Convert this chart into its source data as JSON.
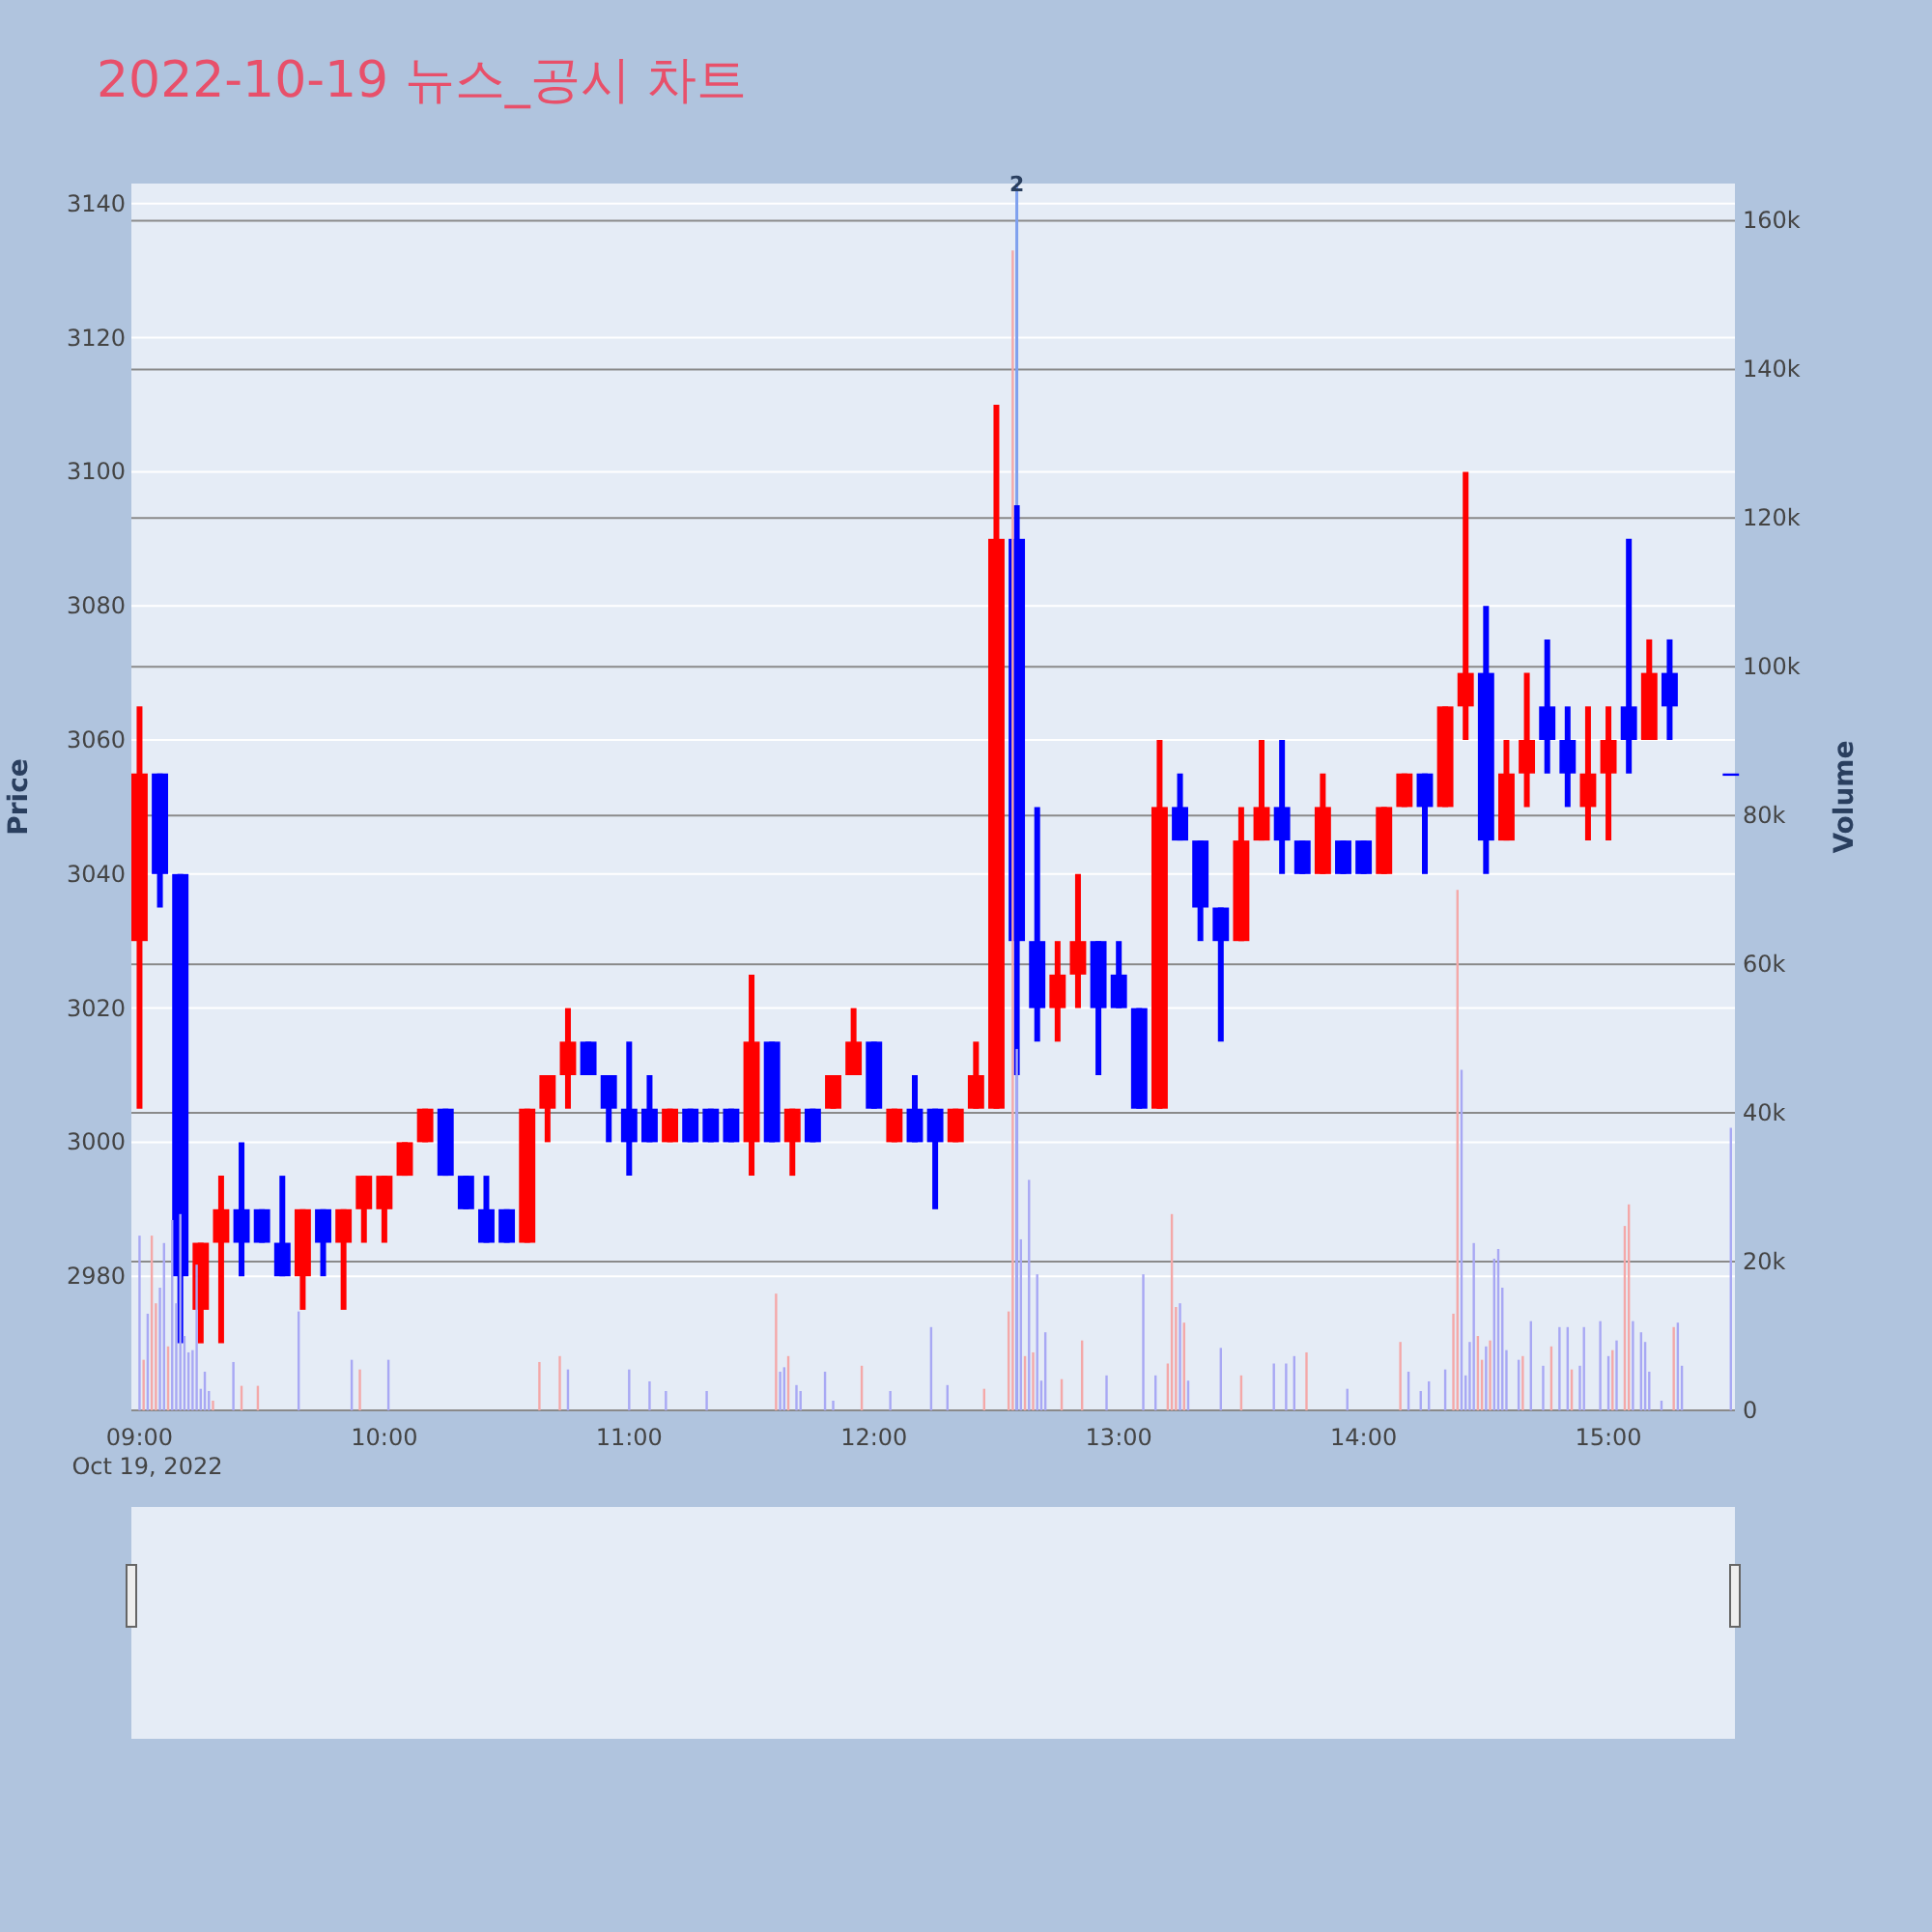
{
  "chart_data": {
    "type": "candlestick",
    "title": "2022-10-19 뉴스_공시 차트",
    "ylabel": "Price",
    "y2label": "Volume",
    "grid": "y",
    "x": [
      "2022-10-19T09:00",
      "2022-10-19T09:05",
      "2022-10-19T09:10",
      "2022-10-19T09:15",
      "2022-10-19T09:20",
      "2022-10-19T09:25",
      "2022-10-19T09:30",
      "2022-10-19T09:35",
      "2022-10-19T09:40",
      "2022-10-19T09:45",
      "2022-10-19T09:50",
      "2022-10-19T09:55",
      "2022-10-19T10:00",
      "2022-10-19T10:05",
      "2022-10-19T10:10",
      "2022-10-19T10:15",
      "2022-10-19T10:20",
      "2022-10-19T10:25",
      "2022-10-19T10:30",
      "2022-10-19T10:35",
      "2022-10-19T10:40",
      "2022-10-19T10:45",
      "2022-10-19T10:50",
      "2022-10-19T10:55",
      "2022-10-19T11:00",
      "2022-10-19T11:05",
      "2022-10-19T11:10",
      "2022-10-19T11:15",
      "2022-10-19T11:20",
      "2022-10-19T11:25",
      "2022-10-19T11:30",
      "2022-10-19T11:35",
      "2022-10-19T11:40",
      "2022-10-19T11:45",
      "2022-10-19T11:50",
      "2022-10-19T11:55",
      "2022-10-19T12:00",
      "2022-10-19T12:05",
      "2022-10-19T12:10",
      "2022-10-19T12:15",
      "2022-10-19T12:20",
      "2022-10-19T12:25",
      "2022-10-19T12:30",
      "2022-10-19T12:35",
      "2022-10-19T12:40",
      "2022-10-19T12:45",
      "2022-10-19T12:50",
      "2022-10-19T12:55",
      "2022-10-19T13:00",
      "2022-10-19T13:05",
      "2022-10-19T13:10",
      "2022-10-19T13:15",
      "2022-10-19T13:20",
      "2022-10-19T13:25",
      "2022-10-19T13:30",
      "2022-10-19T13:35",
      "2022-10-19T13:40",
      "2022-10-19T13:45",
      "2022-10-19T13:50",
      "2022-10-19T13:55",
      "2022-10-19T14:00",
      "2022-10-19T14:05",
      "2022-10-19T14:10",
      "2022-10-19T14:15",
      "2022-10-19T14:20",
      "2022-10-19T14:25",
      "2022-10-19T14:30",
      "2022-10-19T14:35",
      "2022-10-19T14:40",
      "2022-10-19T14:45",
      "2022-10-19T14:50",
      "2022-10-19T14:55",
      "2022-10-19T15:00",
      "2022-10-19T15:05",
      "2022-10-19T15:10",
      "2022-10-19T15:15",
      "2022-10-19T15:30"
    ],
    "ohlc": [
      [
        3030,
        3065,
        3005,
        3055
      ],
      [
        3055,
        3055,
        3035,
        3040
      ],
      [
        3040,
        3040,
        2970,
        2980
      ],
      [
        2975,
        2985,
        2970,
        2985
      ],
      [
        2985,
        2995,
        2970,
        2990
      ],
      [
        2990,
        3000,
        2980,
        2985
      ],
      [
        2990,
        2990,
        2985,
        2985
      ],
      [
        2985,
        2995,
        2980,
        2980
      ],
      [
        2980,
        2990,
        2975,
        2990
      ],
      [
        2990,
        2990,
        2980,
        2985
      ],
      [
        2985,
        2990,
        2975,
        2990
      ],
      [
        2990,
        2995,
        2985,
        2995
      ],
      [
        2990,
        2995,
        2985,
        2995
      ],
      [
        2995,
        3000,
        2995,
        3000
      ],
      [
        3000,
        3005,
        3000,
        3005
      ],
      [
        3005,
        3005,
        2995,
        2995
      ],
      [
        2995,
        2995,
        2990,
        2990
      ],
      [
        2990,
        2995,
        2985,
        2985
      ],
      [
        2990,
        2990,
        2985,
        2985
      ],
      [
        2985,
        3005,
        2985,
        3005
      ],
      [
        3005,
        3010,
        3000,
        3010
      ],
      [
        3010,
        3020,
        3005,
        3015
      ],
      [
        3015,
        3015,
        3010,
        3010
      ],
      [
        3010,
        3010,
        3000,
        3005
      ],
      [
        3005,
        3015,
        2995,
        3000
      ],
      [
        3005,
        3010,
        3000,
        3000
      ],
      [
        3000,
        3005,
        3000,
        3005
      ],
      [
        3005,
        3005,
        3000,
        3000
      ],
      [
        3005,
        3005,
        3000,
        3000
      ],
      [
        3005,
        3005,
        3000,
        3000
      ],
      [
        3000,
        3025,
        2995,
        3015
      ],
      [
        3015,
        3015,
        3000,
        3000
      ],
      [
        3000,
        3005,
        2995,
        3005
      ],
      [
        3005,
        3005,
        3000,
        3000
      ],
      [
        3005,
        3010,
        3005,
        3010
      ],
      [
        3010,
        3020,
        3010,
        3015
      ],
      [
        3015,
        3015,
        3005,
        3005
      ],
      [
        3000,
        3005,
        3000,
        3005
      ],
      [
        3005,
        3010,
        3000,
        3000
      ],
      [
        3005,
        3005,
        2990,
        3000
      ],
      [
        3000,
        3005,
        3000,
        3005
      ],
      [
        3005,
        3015,
        3005,
        3010
      ],
      [
        3005,
        3110,
        3005,
        3090
      ],
      [
        3090,
        3095,
        3010,
        3030
      ],
      [
        3030,
        3050,
        3015,
        3020
      ],
      [
        3020,
        3030,
        3015,
        3025
      ],
      [
        3025,
        3040,
        3020,
        3030
      ],
      [
        3030,
        3030,
        3010,
        3020
      ],
      [
        3025,
        3030,
        3020,
        3020
      ],
      [
        3020,
        3020,
        3005,
        3005
      ],
      [
        3005,
        3060,
        3005,
        3050
      ],
      [
        3050,
        3055,
        3045,
        3045
      ],
      [
        3045,
        3045,
        3030,
        3035
      ],
      [
        3035,
        3035,
        3015,
        3030
      ],
      [
        3030,
        3050,
        3030,
        3045
      ],
      [
        3045,
        3060,
        3045,
        3050
      ],
      [
        3050,
        3060,
        3040,
        3045
      ],
      [
        3045,
        3045,
        3040,
        3040
      ],
      [
        3040,
        3055,
        3040,
        3050
      ],
      [
        3045,
        3045,
        3040,
        3040
      ],
      [
        3045,
        3045,
        3040,
        3040
      ],
      [
        3040,
        3050,
        3040,
        3050
      ],
      [
        3050,
        3055,
        3050,
        3055
      ],
      [
        3055,
        3055,
        3040,
        3050
      ],
      [
        3050,
        3065,
        3050,
        3065
      ],
      [
        3065,
        3100,
        3060,
        3070
      ],
      [
        3070,
        3080,
        3040,
        3045
      ],
      [
        3045,
        3060,
        3045,
        3055
      ],
      [
        3055,
        3070,
        3050,
        3060
      ],
      [
        3065,
        3075,
        3055,
        3060
      ],
      [
        3060,
        3065,
        3050,
        3055
      ],
      [
        3050,
        3065,
        3045,
        3055
      ],
      [
        3055,
        3065,
        3045,
        3060
      ],
      [
        3065,
        3090,
        3055,
        3060
      ],
      [
        3060,
        3075,
        3060,
        3070
      ],
      [
        3070,
        3075,
        3060,
        3065
      ],
      [
        3055,
        3055,
        3055,
        3055
      ]
    ],
    "colors": [
      "#ff0000",
      "#0000ff",
      "#0000ff",
      "#ff0000",
      "#ff0000",
      "#0000ff",
      "#0000ff",
      "#0000ff",
      "#ff0000",
      "#0000ff",
      "#ff0000",
      "#ff0000",
      "#ff0000",
      "#ff0000",
      "#ff0000",
      "#0000ff",
      "#0000ff",
      "#0000ff",
      "#0000ff",
      "#ff0000",
      "#ff0000",
      "#ff0000",
      "#0000ff",
      "#0000ff",
      "#0000ff",
      "#0000ff",
      "#ff0000",
      "#0000ff",
      "#0000ff",
      "#0000ff",
      "#ff0000",
      "#0000ff",
      "#ff0000",
      "#0000ff",
      "#ff0000",
      "#ff0000",
      "#0000ff",
      "#ff0000",
      "#0000ff",
      "#0000ff",
      "#ff0000",
      "#ff0000",
      "#ff0000",
      "#0000ff",
      "#0000ff",
      "#ff0000",
      "#ff0000",
      "#0000ff",
      "#0000ff",
      "#0000ff",
      "#ff0000",
      "#0000ff",
      "#0000ff",
      "#0000ff",
      "#ff0000",
      "#ff0000",
      "#0000ff",
      "#0000ff",
      "#ff0000",
      "#0000ff",
      "#0000ff",
      "#ff0000",
      "#ff0000",
      "#0000ff",
      "#ff0000",
      "#ff0000",
      "#0000ff",
      "#ff0000",
      "#ff0000",
      "#0000ff",
      "#0000ff",
      "#ff0000",
      "#ff0000",
      "#0000ff",
      "#ff0000",
      "#0000ff",
      "#0000ff"
    ],
    "series": [
      {
        "type": "bar",
        "axis": "y2",
        "x": [
          "2022-10-19T09:00",
          "2022-10-19T09:01",
          "2022-10-19T09:02",
          "2022-10-19T09:03",
          "2022-10-19T09:04",
          "2022-10-19T09:05",
          "2022-10-19T09:06",
          "2022-10-19T09:07",
          "2022-10-19T09:08",
          "2022-10-19T09:09",
          "2022-10-19T09:10",
          "2022-10-19T09:11",
          "2022-10-19T09:12",
          "2022-10-19T09:13",
          "2022-10-19T09:14",
          "2022-10-19T09:15",
          "2022-10-19T09:16",
          "2022-10-19T09:17",
          "2022-10-19T09:18",
          "2022-10-19T09:23",
          "2022-10-19T09:25",
          "2022-10-19T09:29",
          "2022-10-19T09:39",
          "2022-10-19T09:52",
          "2022-10-19T09:54",
          "2022-10-19T10:01",
          "2022-10-19T10:38",
          "2022-10-19T10:43",
          "2022-10-19T10:45",
          "2022-10-19T11:00",
          "2022-10-19T11:05",
          "2022-10-19T11:09",
          "2022-10-19T11:19",
          "2022-10-19T11:36",
          "2022-10-19T11:37",
          "2022-10-19T11:38",
          "2022-10-19T11:39",
          "2022-10-19T11:41",
          "2022-10-19T11:42",
          "2022-10-19T11:48",
          "2022-10-19T11:50",
          "2022-10-19T11:57",
          "2022-10-19T12:04",
          "2022-10-19T12:14",
          "2022-10-19T12:18",
          "2022-10-19T12:27",
          "2022-10-19T12:33",
          "2022-10-19T12:34",
          "2022-10-19T12:35",
          "2022-10-19T12:36",
          "2022-10-19T12:37",
          "2022-10-19T12:38",
          "2022-10-19T12:39",
          "2022-10-19T12:40",
          "2022-10-19T12:41",
          "2022-10-19T12:42",
          "2022-10-19T12:46",
          "2022-10-19T12:51",
          "2022-10-19T12:57",
          "2022-10-19T13:06",
          "2022-10-19T13:09",
          "2022-10-19T13:12",
          "2022-10-19T13:13",
          "2022-10-19T13:14",
          "2022-10-19T13:15",
          "2022-10-19T13:16",
          "2022-10-19T13:17",
          "2022-10-19T13:25",
          "2022-10-19T13:30",
          "2022-10-19T13:38",
          "2022-10-19T13:41",
          "2022-10-19T13:43",
          "2022-10-19T13:46",
          "2022-10-19T13:56",
          "2022-10-19T14:09",
          "2022-10-19T14:11",
          "2022-10-19T14:14",
          "2022-10-19T14:16",
          "2022-10-19T14:20",
          "2022-10-19T14:22",
          "2022-10-19T14:23",
          "2022-10-19T14:24",
          "2022-10-19T14:25",
          "2022-10-19T14:26",
          "2022-10-19T14:27",
          "2022-10-19T14:28",
          "2022-10-19T14:29",
          "2022-10-19T14:30",
          "2022-10-19T14:31",
          "2022-10-19T14:32",
          "2022-10-19T14:33",
          "2022-10-19T14:34",
          "2022-10-19T14:35",
          "2022-10-19T14:38",
          "2022-10-19T14:39",
          "2022-10-19T14:41",
          "2022-10-19T14:44",
          "2022-10-19T14:46",
          "2022-10-19T14:48",
          "2022-10-19T14:50",
          "2022-10-19T14:51",
          "2022-10-19T14:53",
          "2022-10-19T14:54",
          "2022-10-19T14:58",
          "2022-10-19T15:00",
          "2022-10-19T15:01",
          "2022-10-19T15:02",
          "2022-10-19T15:04",
          "2022-10-19T15:05",
          "2022-10-19T15:06",
          "2022-10-19T15:08",
          "2022-10-19T15:09",
          "2022-10-19T15:10",
          "2022-10-19T15:13",
          "2022-10-19T15:16",
          "2022-10-19T15:17",
          "2022-10-19T15:18",
          "2022-10-19T15:30"
        ],
        "values": [
          23500,
          6800,
          13000,
          23500,
          14400,
          16500,
          22500,
          8600,
          25600,
          14400,
          26400,
          10000,
          7800,
          8100,
          19600,
          2900,
          5200,
          2600,
          1300,
          6500,
          3300,
          3300,
          13300,
          6800,
          5500,
          6800,
          6500,
          7300,
          5500,
          5500,
          3900,
          2600,
          2600,
          15700,
          5200,
          5800,
          7300,
          3400,
          2600,
          5200,
          1300,
          6000,
          2600,
          11200,
          3400,
          2900,
          13300,
          156000,
          48600,
          23000,
          7300,
          31000,
          7800,
          18300,
          4000,
          10500,
          4200,
          9400,
          4700,
          18300,
          4700,
          6300,
          26400,
          13900,
          14400,
          11800,
          4000,
          8400,
          4700,
          6300,
          6300,
          7300,
          7800,
          2900,
          9200,
          5200,
          2600,
          3900,
          5500,
          13000,
          70000,
          45800,
          4700,
          9200,
          22500,
          10000,
          6800,
          8600,
          9400,
          20400,
          21700,
          16500,
          8100,
          6800,
          7300,
          12000,
          6000,
          8600,
          11200,
          11200,
          5500,
          6000,
          11200,
          12000,
          7300,
          8100,
          9400,
          24800,
          27700,
          12000,
          10500,
          9200,
          5200,
          1300,
          11200,
          11800,
          6000,
          38000
        ],
        "colors": [
          "#a8a8f4",
          "#f4a8a8",
          "#a8a8f4",
          "#f4a8a8",
          "#f4a8a8",
          "#a8a8f4",
          "#a8a8f4",
          "#f4a8a8",
          "#a8a8f4",
          "#a8a8f4",
          "#a8a8f4",
          "#a8a8f4",
          "#a8a8f4",
          "#a8a8f4",
          "#a8a8f4",
          "#a8a8f4",
          "#a8a8f4",
          "#a8a8f4",
          "#f4a8a8",
          "#a8a8f4",
          "#f4a8a8",
          "#f4a8a8",
          "#a8a8f4",
          "#a8a8f4",
          "#f4a8a8",
          "#a8a8f4",
          "#f4a8a8",
          "#f4a8a8",
          "#a8a8f4",
          "#a8a8f4",
          "#a8a8f4",
          "#a8a8f4",
          "#a8a8f4",
          "#f4a8a8",
          "#a8a8f4",
          "#a8a8f4",
          "#f4a8a8",
          "#a8a8f4",
          "#a8a8f4",
          "#a8a8f4",
          "#a8a8f4",
          "#f4a8a8",
          "#a8a8f4",
          "#a8a8f4",
          "#a8a8f4",
          "#f4a8a8",
          "#f4a8a8",
          "#f4a8a8",
          "#a8a8f4",
          "#a8a8f4",
          "#f4a8a8",
          "#a8a8f4",
          "#f4a8a8",
          "#a8a8f4",
          "#a8a8f4",
          "#a8a8f4",
          "#f4a8a8",
          "#f4a8a8",
          "#a8a8f4",
          "#a8a8f4",
          "#a8a8f4",
          "#f4a8a8",
          "#f4a8a8",
          "#f4a8a8",
          "#a8a8f4",
          "#f4a8a8",
          "#a8a8f4",
          "#a8a8f4",
          "#f4a8a8",
          "#a8a8f4",
          "#a8a8f4",
          "#a8a8f4",
          "#f4a8a8",
          "#a8a8f4",
          "#f4a8a8",
          "#a8a8f4",
          "#a8a8f4",
          "#a8a8f4",
          "#a8a8f4",
          "#f4a8a8",
          "#f4a8a8",
          "#a8a8f4",
          "#a8a8f4",
          "#a8a8f4",
          "#a8a8f4",
          "#f4a8a8",
          "#f4a8a8",
          "#a8a8f4",
          "#f4a8a8",
          "#a8a8f4",
          "#a8a8f4",
          "#a8a8f4",
          "#a8a8f4",
          "#a8a8f4",
          "#f4a8a8",
          "#a8a8f4",
          "#a8a8f4",
          "#f4a8a8",
          "#a8a8f4",
          "#a8a8f4",
          "#f4a8a8",
          "#a8a8f4",
          "#a8a8f4",
          "#a8a8f4",
          "#a8a8f4",
          "#f4a8a8",
          "#a8a8f4",
          "#f4a8a8",
          "#f4a8a8",
          "#a8a8f4",
          "#a8a8f4",
          "#a8a8f4",
          "#a8a8f4",
          "#a8a8f4",
          "#f4a8a8",
          "#a8a8f4",
          "#a8a8f4",
          "#a8a8f4"
        ]
      }
    ],
    "xlim": [
      "2022-10-19T08:58",
      "2022-10-19T15:31"
    ],
    "xticks": [
      {
        "value": "2022-10-19T09:00",
        "label": "09:00\nOct 19, 2022"
      },
      {
        "value": "2022-10-19T10:00",
        "label": "10:00"
      },
      {
        "value": "2022-10-19T11:00",
        "label": "11:00"
      },
      {
        "value": "2022-10-19T12:00",
        "label": "12:00"
      },
      {
        "value": "2022-10-19T13:00",
        "label": "13:00"
      },
      {
        "value": "2022-10-19T14:00",
        "label": "14:00"
      },
      {
        "value": "2022-10-19T15:00",
        "label": "15:00"
      }
    ],
    "ylim": [
      2960,
      3143
    ],
    "yticks": [
      2980,
      3000,
      3020,
      3040,
      3060,
      3080,
      3100,
      3120,
      3140
    ],
    "y2lim": [
      0,
      165000
    ],
    "y2ticks": [
      0,
      {
        "value": 20000,
        "label": "20k"
      },
      {
        "value": 40000,
        "label": "40k"
      },
      {
        "value": 60000,
        "label": "60k"
      },
      {
        "value": 80000,
        "label": "80k"
      },
      {
        "value": 100000,
        "label": "100k"
      },
      {
        "value": 120000,
        "label": "120k"
      },
      {
        "value": 140000,
        "label": "140k"
      },
      {
        "value": 160000,
        "label": "160k"
      }
    ],
    "ref_lines": [
      {
        "axis": "x",
        "value": "2022-10-19T12:35",
        "label": "2",
        "color": "#7fa0ee"
      }
    ]
  }
}
